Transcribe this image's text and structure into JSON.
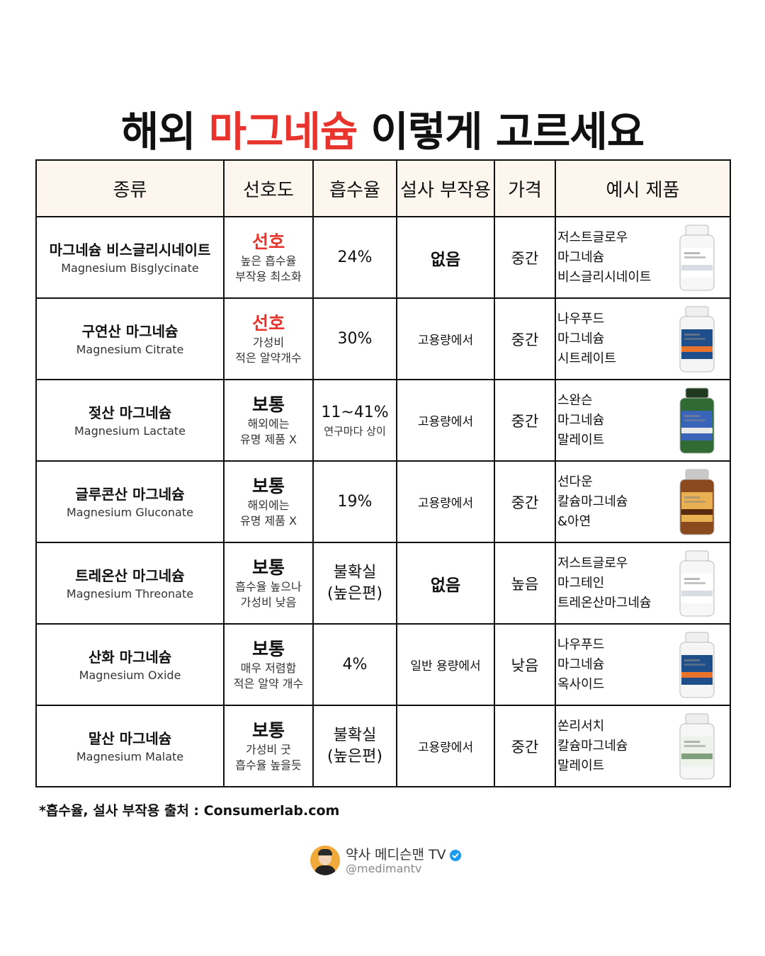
{
  "title": {
    "before": "해외 ",
    "accent": "마그네슘",
    "after": " 이렇게 고르세요"
  },
  "columns": [
    "종류",
    "선호도",
    "흡수율",
    "설사 부작용",
    "가격",
    "예시 제품"
  ],
  "rows": [
    {
      "name_ko": "마그네슘 비스글리시네이트",
      "name_en": "Magnesium Bisglycinate",
      "pref": "선호",
      "pref_l1": "높은 흡수율",
      "pref_l2": "부작용 최소화",
      "absorb": "24%",
      "absorb_note": "",
      "diarrhea": "없음",
      "price": "중간",
      "product": [
        "저스트글로우",
        "마그네슘",
        "비스글리시네이트"
      ]
    },
    {
      "name_ko": "구연산 마그네슘",
      "name_en": "Magnesium Citrate",
      "pref": "선호",
      "pref_l1": "가성비",
      "pref_l2": "적은 알약개수",
      "absorb": "30%",
      "absorb_note": "",
      "diarrhea": "고용량에서",
      "price": "중간",
      "product": [
        "나우푸드",
        "마그네슘",
        "시트레이트"
      ]
    },
    {
      "name_ko": "젖산 마그네슘",
      "name_en": "Magnesium Lactate",
      "pref": "보통",
      "pref_l1": "해외에는",
      "pref_l2": "유명 제품 X",
      "absorb": "11~41%",
      "absorb_note": "연구마다 상이",
      "diarrhea": "고용량에서",
      "price": "중간",
      "product": [
        "스완슨",
        "마그네슘",
        "말레이트"
      ]
    },
    {
      "name_ko": "글루콘산 마그네슘",
      "name_en": "Magnesium Gluconate",
      "pref": "보통",
      "pref_l1": "해외에는",
      "pref_l2": "유명 제품 X",
      "absorb": "19%",
      "absorb_note": "",
      "diarrhea": "고용량에서",
      "price": "중간",
      "product": [
        "선다운",
        "칼슘마그네슘",
        "&아연"
      ]
    },
    {
      "name_ko": "트레온산 마그네슘",
      "name_en": "Magnesium Threonate",
      "pref": "보통",
      "pref_l1": "흡수율 높으나",
      "pref_l2": "가성비 낮음",
      "absorb": "불확실",
      "absorb_note": "(높은편)",
      "diarrhea": "없음",
      "price": "높음",
      "product": [
        "저스트글로우",
        "마그테인",
        "트레온산마그네슘"
      ]
    },
    {
      "name_ko": "산화 마그네슘",
      "name_en": "Magnesium Oxide",
      "pref": "보통",
      "pref_l1": "매우 저렴함",
      "pref_l2": "적은 알약 개수",
      "absorb": "4%",
      "absorb_note": "",
      "diarrhea": "일반 용량에서",
      "price": "낮음",
      "product": [
        "나우푸드",
        "마그네슘",
        "옥사이드"
      ]
    },
    {
      "name_ko": "말산 마그네슘",
      "name_en": "Magnesium Malate",
      "pref": "보통",
      "pref_l1": "가성비 굿",
      "pref_l2": "흡수율 높을듯",
      "absorb": "불확실",
      "absorb_note": "(높은편)",
      "diarrhea": "고용량에서",
      "price": "중간",
      "product": [
        "쏜리서치",
        "칼슘마그네슘",
        "말레이트"
      ]
    }
  ],
  "note": "*흡수율, 설사 부작용 출처 : Consumerlab.com",
  "footer": {
    "channel": "약사 메디슨맨 TV",
    "handle": "@medimantv"
  },
  "colors": {
    "accent": "#e8342c",
    "header_bg": "#fdf6ee",
    "verified": "#1d9bf0"
  }
}
